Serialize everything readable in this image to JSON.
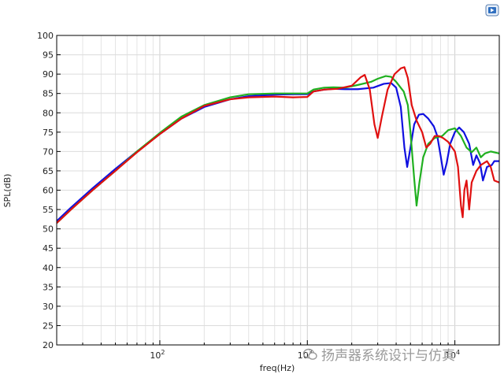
{
  "chart_data": {
    "type": "line",
    "title": "",
    "xlabel": "freq(Hz)",
    "ylabel": "SPL(dB)",
    "xscale": "log",
    "xlim": [
      20,
      20000
    ],
    "ylim": [
      20,
      100
    ],
    "grid": true,
    "legend": "none",
    "y_ticks": [
      "20",
      "25",
      "30",
      "35",
      "40",
      "45",
      "50",
      "55",
      "60",
      "65",
      "70",
      "75",
      "80",
      "85",
      "90",
      "95",
      "100"
    ],
    "x_ticks": [
      {
        "value": 100,
        "base": "10",
        "exp": "2"
      },
      {
        "value": 1000,
        "base": "10",
        "exp": "3"
      },
      {
        "value": 10000,
        "base": "10",
        "exp": "4"
      }
    ],
    "series": [
      {
        "color": "#1010e0",
        "points": [
          [
            20,
            52
          ],
          [
            25,
            55.5
          ],
          [
            35,
            60.5
          ],
          [
            50,
            65.5
          ],
          [
            70,
            70
          ],
          [
            100,
            74.5
          ],
          [
            140,
            78.5
          ],
          [
            200,
            81.5
          ],
          [
            300,
            83.5
          ],
          [
            400,
            84.3
          ],
          [
            600,
            84.7
          ],
          [
            800,
            84.8
          ],
          [
            1000,
            84.8
          ],
          [
            1100,
            85.5
          ],
          [
            1300,
            86
          ],
          [
            1500,
            86.2
          ],
          [
            1800,
            86.1
          ],
          [
            2200,
            86.1
          ],
          [
            2800,
            86.5
          ],
          [
            3300,
            87.5
          ],
          [
            3700,
            87.7
          ],
          [
            4000,
            86.5
          ],
          [
            4300,
            81.5
          ],
          [
            4550,
            71
          ],
          [
            4750,
            66
          ],
          [
            5000,
            71
          ],
          [
            5300,
            77
          ],
          [
            5700,
            79.5
          ],
          [
            6100,
            79.7
          ],
          [
            6600,
            78.5
          ],
          [
            7200,
            76.5
          ],
          [
            7600,
            74
          ],
          [
            8000,
            69
          ],
          [
            8400,
            64
          ],
          [
            8800,
            67
          ],
          [
            9300,
            72
          ],
          [
            10000,
            75
          ],
          [
            10700,
            76.2
          ],
          [
            11500,
            75
          ],
          [
            12500,
            72
          ],
          [
            13300,
            66.5
          ],
          [
            14000,
            69
          ],
          [
            14800,
            67
          ],
          [
            15500,
            62.5
          ],
          [
            16500,
            66
          ],
          [
            17800,
            66.5
          ],
          [
            18500,
            67.5
          ],
          [
            20000,
            67.5
          ]
        ]
      },
      {
        "color": "#20b020",
        "points": [
          [
            20,
            51.5
          ],
          [
            25,
            55
          ],
          [
            35,
            60
          ],
          [
            50,
            65
          ],
          [
            70,
            70
          ],
          [
            100,
            74.8
          ],
          [
            140,
            79
          ],
          [
            200,
            82
          ],
          [
            300,
            84
          ],
          [
            400,
            84.8
          ],
          [
            600,
            85
          ],
          [
            800,
            85
          ],
          [
            1000,
            85
          ],
          [
            1100,
            86
          ],
          [
            1300,
            86.5
          ],
          [
            1500,
            86.6
          ],
          [
            1800,
            86.5
          ],
          [
            2200,
            87.2
          ],
          [
            2700,
            88
          ],
          [
            3000,
            88.8
          ],
          [
            3400,
            89.5
          ],
          [
            3700,
            89.3
          ],
          [
            4000,
            88
          ],
          [
            4500,
            85.5
          ],
          [
            4800,
            82
          ],
          [
            5000,
            75
          ],
          [
            5300,
            63
          ],
          [
            5500,
            56
          ],
          [
            5750,
            62
          ],
          [
            6100,
            68.5
          ],
          [
            6600,
            72
          ],
          [
            7300,
            73.5
          ],
          [
            8200,
            74
          ],
          [
            9000,
            75.5
          ],
          [
            10000,
            76
          ],
          [
            11000,
            74
          ],
          [
            12000,
            71
          ],
          [
            13000,
            69.8
          ],
          [
            14000,
            71
          ],
          [
            15000,
            68.5
          ],
          [
            16000,
            69.5
          ],
          [
            17500,
            70
          ],
          [
            20000,
            69.5
          ]
        ]
      },
      {
        "color": "#e01010",
        "points": [
          [
            20,
            51.5
          ],
          [
            25,
            55
          ],
          [
            35,
            60
          ],
          [
            50,
            65
          ],
          [
            70,
            69.8
          ],
          [
            100,
            74.5
          ],
          [
            140,
            78.5
          ],
          [
            200,
            81.8
          ],
          [
            300,
            83.5
          ],
          [
            400,
            84
          ],
          [
            600,
            84.2
          ],
          [
            800,
            84
          ],
          [
            1000,
            84.1
          ],
          [
            1100,
            85.5
          ],
          [
            1300,
            86
          ],
          [
            1600,
            86.2
          ],
          [
            2000,
            87
          ],
          [
            2300,
            89.2
          ],
          [
            2450,
            89.8
          ],
          [
            2650,
            86
          ],
          [
            2850,
            77
          ],
          [
            3000,
            73.5
          ],
          [
            3200,
            79
          ],
          [
            3500,
            86
          ],
          [
            3900,
            90
          ],
          [
            4300,
            91.5
          ],
          [
            4550,
            91.8
          ],
          [
            4800,
            89
          ],
          [
            5100,
            82
          ],
          [
            5500,
            78
          ],
          [
            6000,
            75
          ],
          [
            6400,
            71
          ],
          [
            6800,
            72
          ],
          [
            7300,
            74
          ],
          [
            7800,
            74
          ],
          [
            8300,
            73.5
          ],
          [
            9000,
            72.5
          ],
          [
            10000,
            70
          ],
          [
            10500,
            66
          ],
          [
            11000,
            56
          ],
          [
            11300,
            53
          ],
          [
            11600,
            60
          ],
          [
            12000,
            62.5
          ],
          [
            12500,
            55
          ],
          [
            13000,
            62
          ],
          [
            14000,
            65
          ],
          [
            15000,
            66.5
          ],
          [
            16500,
            67.5
          ],
          [
            17500,
            66
          ],
          [
            18500,
            62.5
          ],
          [
            20000,
            62
          ]
        ]
      }
    ]
  },
  "watermark": {
    "text": "扬声器系统设计与仿真",
    "icon": "wechat-icon"
  },
  "corner_icon": "play-badge-icon"
}
